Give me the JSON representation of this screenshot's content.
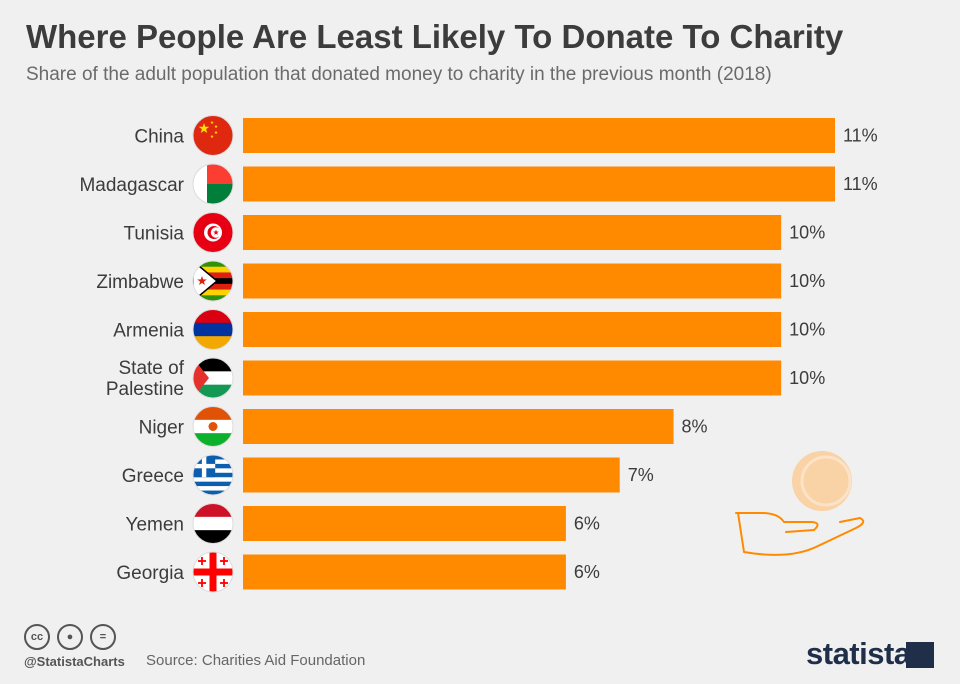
{
  "header": {
    "title": "Where People Are Least Likely To Donate To Charity",
    "subtitle": "Share of the adult population that donated money to charity in the previous month (2018)"
  },
  "footer": {
    "handle": "@StatistaCharts",
    "source": "Source: Charities Aid Foundation",
    "brand": "statista",
    "license_icons": [
      "creative-commons-icon",
      "attribution-icon",
      "no-derivatives-icon"
    ]
  },
  "colors": {
    "bar": "#ff8a00",
    "background": "#f0f0f0",
    "text": "#3c3c3c"
  },
  "chart_data": {
    "type": "bar",
    "orientation": "horizontal",
    "categories": [
      "China",
      "Madagascar",
      "Tunisia",
      "Zimbabwe",
      "Armenia",
      "State of Palestine",
      "Niger",
      "Greece",
      "Yemen",
      "Georgia"
    ],
    "values": [
      11,
      11,
      10,
      10,
      10,
      10,
      8,
      7,
      6,
      6
    ],
    "data_labels": [
      "11%",
      "11%",
      "10%",
      "10%",
      "10%",
      "10%",
      "8%",
      "7%",
      "6%",
      "6%"
    ],
    "unit": "%",
    "title": "Where People Are Least Likely To Donate To Charity",
    "subtitle": "Share of the adult population that donated money to charity in the previous month (2018)",
    "xlabel": "",
    "ylabel": "",
    "xlim": [
      0,
      11
    ],
    "grid": false,
    "legend": "none",
    "flag_icons": [
      "china-flag-icon",
      "madagascar-flag-icon",
      "tunisia-flag-icon",
      "zimbabwe-flag-icon",
      "armenia-flag-icon",
      "palestine-flag-icon",
      "niger-flag-icon",
      "greece-flag-icon",
      "yemen-flag-icon",
      "georgia-flag-icon"
    ]
  }
}
